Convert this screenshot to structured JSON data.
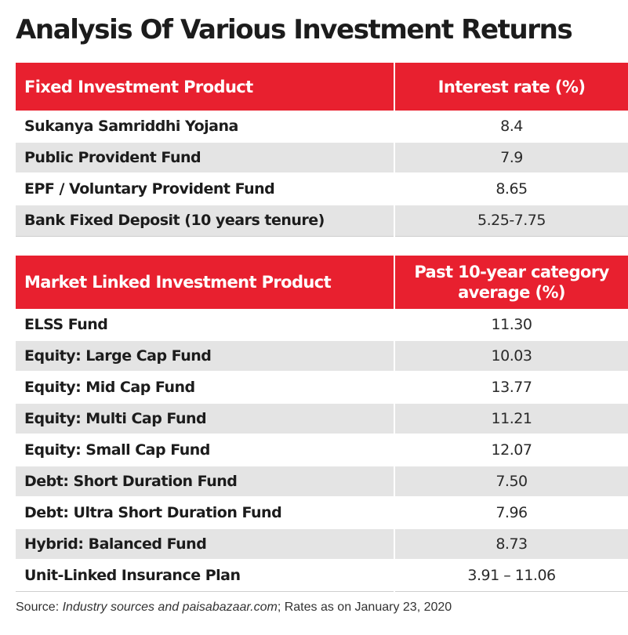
{
  "title": "Analysis Of Various Investment Returns",
  "chart_data": {
    "type": "table",
    "title": "Analysis Of Various Investment Returns",
    "tables": [
      {
        "columns": [
          "Fixed Investment Product",
          "Interest rate (%)"
        ],
        "rows": [
          [
            "Sukanya Samriddhi Yojana",
            "8.4"
          ],
          [
            "Public Provident Fund",
            "7.9"
          ],
          [
            "EPF / Voluntary Provident Fund",
            "8.65"
          ],
          [
            "Bank Fixed Deposit (10 years tenure)",
            "5.25-7.75"
          ]
        ]
      },
      {
        "columns": [
          "Market Linked Investment Product",
          "Past 10-year category average (%)"
        ],
        "rows": [
          [
            "ELSS Fund",
            "11.30"
          ],
          [
            "Equity: Large Cap Fund",
            "10.03"
          ],
          [
            "Equity: Mid Cap Fund",
            "13.77"
          ],
          [
            "Equity: Multi Cap Fund",
            "11.21"
          ],
          [
            "Equity: Small Cap Fund",
            "12.07"
          ],
          [
            "Debt: Short Duration Fund",
            "7.50"
          ],
          [
            "Debt: Ultra Short Duration Fund",
            "7.96"
          ],
          [
            "Hybrid: Balanced Fund",
            "8.73"
          ],
          [
            "Unit-Linked Insurance Plan",
            "3.91 – 11.06"
          ]
        ]
      }
    ]
  },
  "source": {
    "label": "Source: ",
    "italic_text": "Industry sources and paisabazaar.com",
    "rest_text": "; Rates as on January 23, 2020"
  },
  "colors": {
    "header_red": "#e8202f",
    "stripe_gray": "#e4e4e4"
  }
}
